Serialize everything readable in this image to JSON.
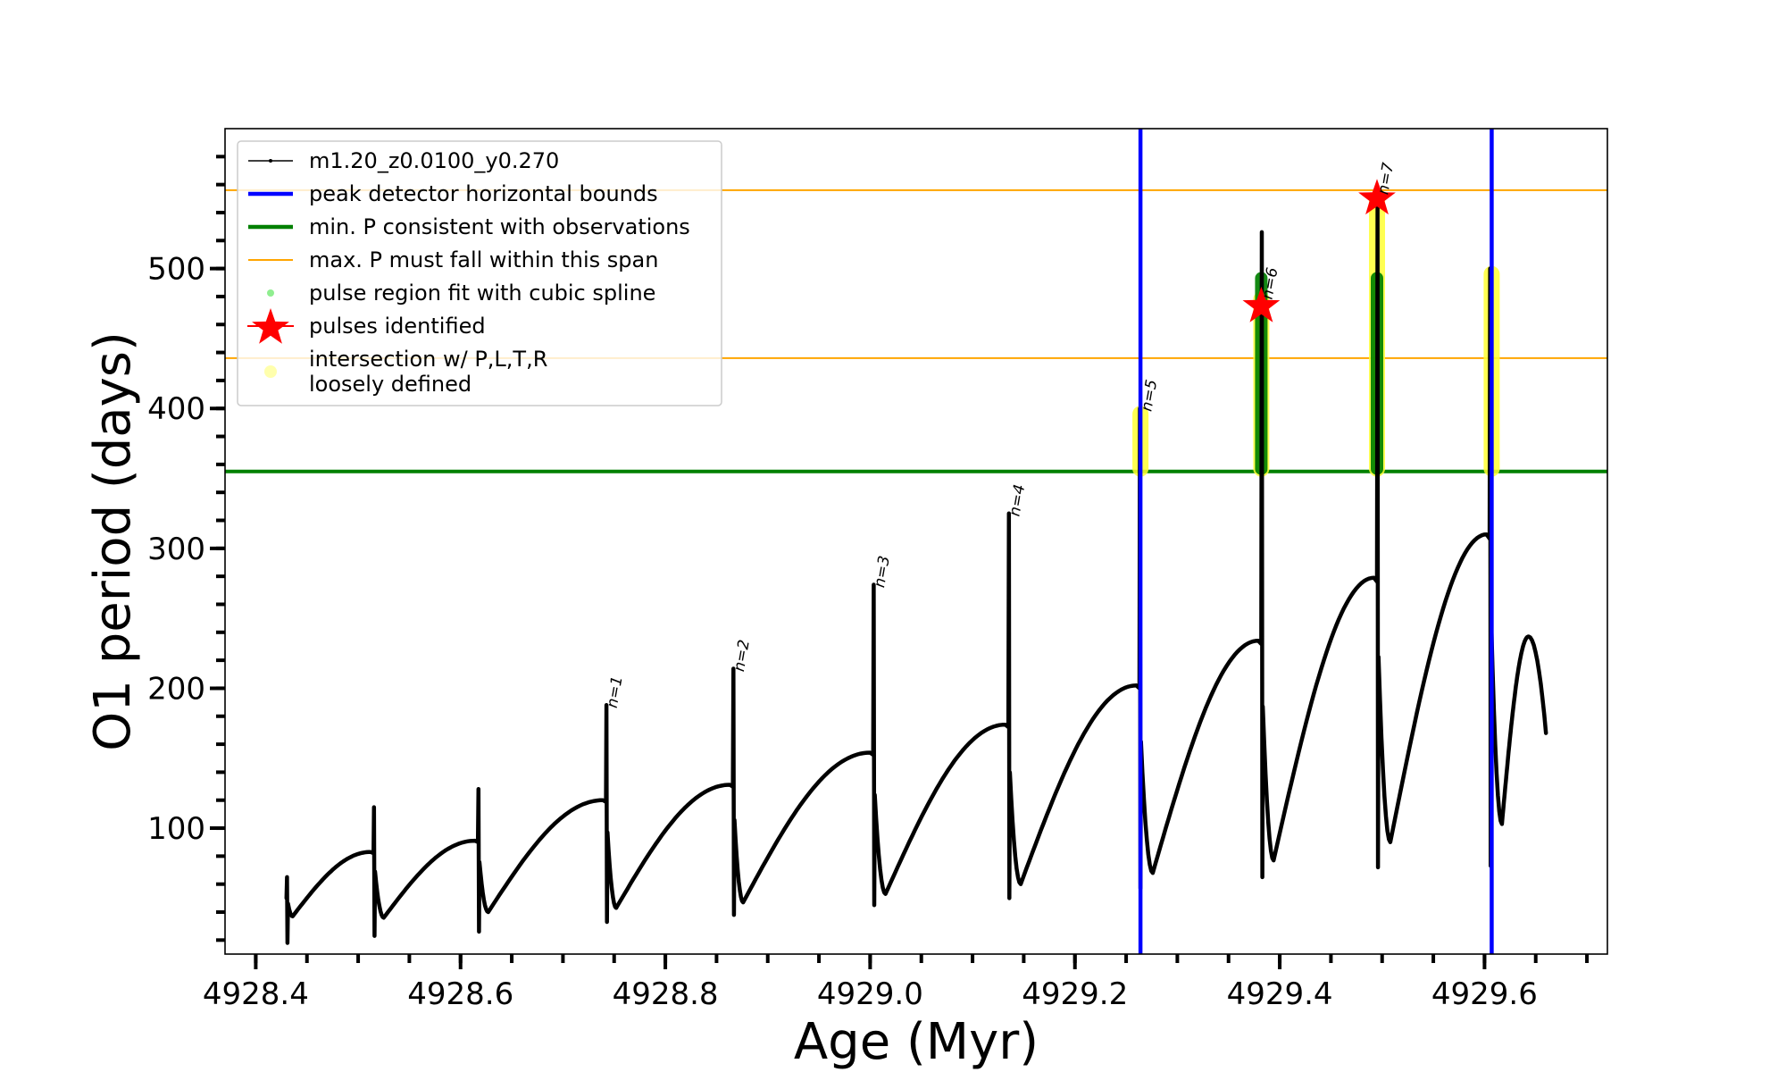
{
  "chart_data": {
    "type": "line",
    "title": "",
    "xlabel": "Age (Myr)",
    "ylabel": "O1 period (days)",
    "xlim": [
      4928.37,
      4929.72
    ],
    "ylim": [
      10,
      600
    ],
    "xticks": [
      4928.4,
      4928.6,
      4928.8,
      4929.0,
      4929.2,
      4929.4,
      4929.6
    ],
    "xtick_labels": [
      "4928.4",
      "4928.6",
      "4928.8",
      "4929.0",
      "4929.2",
      "4929.4",
      "4929.6"
    ],
    "x_minor_step": 0.05,
    "yticks": [
      100,
      200,
      300,
      400,
      500
    ],
    "ytick_labels": [
      "100",
      "200",
      "300",
      "400",
      "500"
    ],
    "y_minor_step": 20,
    "grid": false,
    "legend_position": "top-left",
    "legend": [
      {
        "label": "m1.20_z0.0100_y0.270",
        "kind": "line-marker",
        "color": "#000000"
      },
      {
        "label": "peak detector horizontal bounds",
        "kind": "thick-line",
        "color": "#0000ff"
      },
      {
        "label": "min. P consistent with observations",
        "kind": "thick-line",
        "color": "#008000"
      },
      {
        "label": "max. P must fall within this span",
        "kind": "thin-line",
        "color": "#ffa500"
      },
      {
        "label": "pulse region fit with cubic spline",
        "kind": "dot",
        "color": "#90ee90"
      },
      {
        "label": "pulses identified",
        "kind": "star",
        "color": "#ff0000"
      },
      {
        "label": "intersection w/ P,L,T,R\nloosely defined",
        "kind": "dot",
        "color": "#ffff99"
      }
    ],
    "series": [
      {
        "name": "m1.20_z0.0100_y0.270",
        "color": "#000000",
        "cycles": [
          {
            "pulse_age": 4928.43,
            "pre_max": 50,
            "spike_top": 65,
            "spike_bottom": 18,
            "post_min": 37,
            "post_min_age": 4928.436
          },
          {
            "pulse_age": 4928.515,
            "pre_max": 83,
            "spike_top": 115,
            "spike_bottom": 23,
            "post_min": 36,
            "post_min_age": 4928.525
          },
          {
            "pulse_age": 4928.617,
            "pre_max": 91,
            "spike_top": 128,
            "spike_bottom": 26,
            "post_min": 40,
            "post_min_age": 4928.627
          },
          {
            "pulse_age": 4928.742,
            "pre_max": 120,
            "spike_top": 188,
            "spike_bottom": 33,
            "post_min": 43,
            "post_min_age": 4928.752
          },
          {
            "pulse_age": 4928.866,
            "pre_max": 131,
            "spike_top": 214,
            "spike_bottom": 38,
            "post_min": 47,
            "post_min_age": 4928.876
          },
          {
            "pulse_age": 4929.003,
            "pre_max": 154,
            "spike_top": 274,
            "spike_bottom": 45,
            "post_min": 53,
            "post_min_age": 4929.015
          },
          {
            "pulse_age": 4929.135,
            "pre_max": 174,
            "spike_top": 325,
            "spike_bottom": 50,
            "post_min": 60,
            "post_min_age": 4929.147
          },
          {
            "pulse_age": 4929.263,
            "pre_max": 202,
            "spike_top": 400,
            "spike_bottom": 57,
            "post_min": 68,
            "post_min_age": 4929.276
          },
          {
            "pulse_age": 4929.382,
            "pre_max": 234,
            "spike_top": 526,
            "spike_bottom": 65,
            "post_min": 77,
            "post_min_age": 4929.394
          },
          {
            "pulse_age": 4929.495,
            "pre_max": 279,
            "spike_top": 550,
            "spike_bottom": 72,
            "post_min": 90,
            "post_min_age": 4929.508
          },
          {
            "pulse_age": 4929.605,
            "pre_max": 310,
            "spike_top": 500,
            "spike_bottom": 73,
            "post_min": 103,
            "post_min_age": 4929.617
          }
        ],
        "tail": {
          "peak_age": 4929.643,
          "peak": 237,
          "end_age": 4929.66,
          "end": 168
        }
      }
    ],
    "vertical_lines": [
      {
        "name": "peak detector horizontal bounds",
        "x": 4929.264,
        "color": "#0000ff"
      },
      {
        "name": "peak detector horizontal bounds",
        "x": 4929.607,
        "color": "#0000ff"
      }
    ],
    "horizontal_lines": [
      {
        "name": "min. P consistent with observations",
        "y": 355,
        "color": "#008000"
      },
      {
        "name": "max. P must fall within this span (lower)",
        "y": 436,
        "color": "#ffa500"
      },
      {
        "name": "max. P must fall within this span (upper)",
        "y": 556,
        "color": "#ffa500"
      }
    ],
    "loosely_defined_regions": [
      {
        "x": 4929.264,
        "y_min": 355,
        "y_max": 398
      },
      {
        "x": 4929.382,
        "y_min": 355,
        "y_max": 480
      },
      {
        "x": 4929.495,
        "y_min": 355,
        "y_max": 550
      },
      {
        "x": 4929.607,
        "y_min": 355,
        "y_max": 498
      }
    ],
    "spline_fit_regions": [
      {
        "x": 4929.382,
        "y_min": 355,
        "y_max": 495,
        "spike_top": 526
      },
      {
        "x": 4929.495,
        "y_min": 355,
        "y_max": 495
      }
    ],
    "pulses_identified": [
      {
        "x": 4929.382,
        "y": 473
      },
      {
        "x": 4929.495,
        "y": 550
      }
    ],
    "annotations": [
      {
        "text": "n=1",
        "x": 4928.742,
        "y": 188
      },
      {
        "text": "n=2",
        "x": 4928.866,
        "y": 214
      },
      {
        "text": "n=3",
        "x": 4929.003,
        "y": 274
      },
      {
        "text": "n=4",
        "x": 4929.135,
        "y": 325
      },
      {
        "text": "n=5",
        "x": 4929.264,
        "y": 400
      },
      {
        "text": "n=6",
        "x": 4929.382,
        "y": 480
      },
      {
        "text": "n=7",
        "x": 4929.495,
        "y": 555
      }
    ]
  }
}
